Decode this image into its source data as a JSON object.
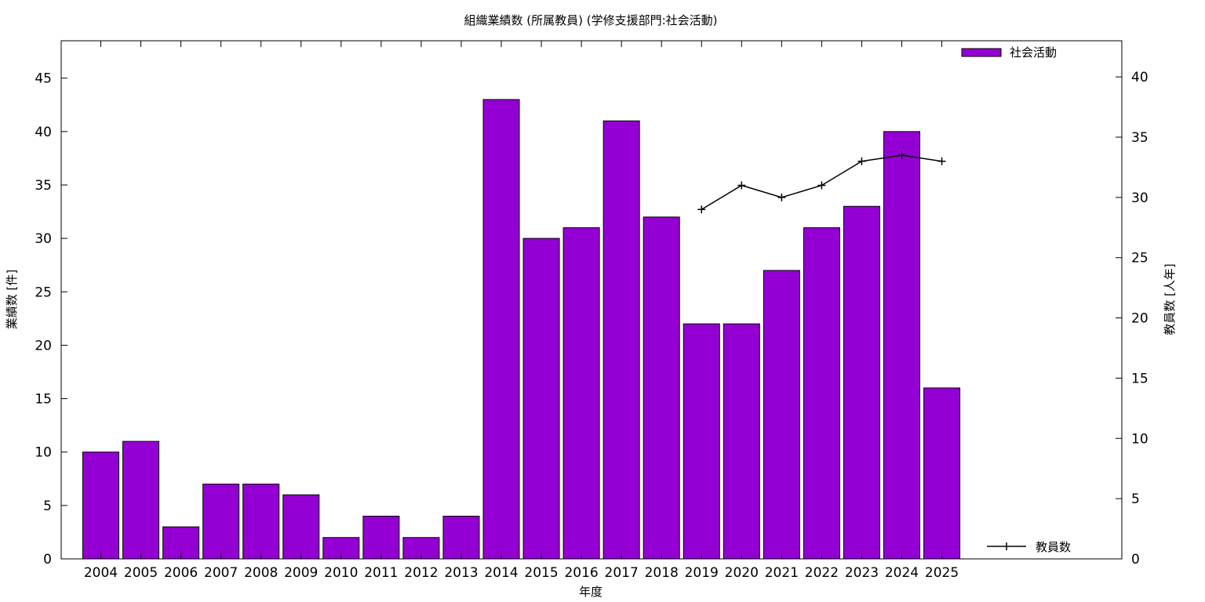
{
  "chart_data": {
    "type": "bar",
    "title": "組織業績数 (所属教員) (学修支援部門:社会活動)",
    "xlabel": "年度",
    "ylabel": "業績数 [件]",
    "y2label": "教員数 [人年]",
    "ylim": [
      0,
      48.5
    ],
    "y2lim": [
      0,
      43
    ],
    "yticks": [
      0,
      5,
      10,
      15,
      20,
      25,
      30,
      35,
      40,
      45
    ],
    "y2ticks": [
      0,
      5,
      10,
      15,
      20,
      25,
      30,
      35,
      40
    ],
    "grid": false,
    "categories": [
      "2004",
      "2005",
      "2006",
      "2007",
      "2008",
      "2009",
      "2010",
      "2011",
      "2012",
      "2013",
      "2014",
      "2015",
      "2016",
      "2017",
      "2018",
      "2019",
      "2020",
      "2021",
      "2022",
      "2023",
      "2024",
      "2025"
    ],
    "series": [
      {
        "name": "社会活動",
        "type": "bar",
        "axis": "left",
        "color": "#9400d3",
        "legend_position": "top-right",
        "values": [
          10,
          11,
          3,
          7,
          7,
          6,
          2,
          4,
          2,
          4,
          43,
          30,
          31,
          41,
          32,
          22,
          22,
          27,
          31,
          33,
          40,
          16
        ]
      },
      {
        "name": "教員数",
        "type": "line",
        "axis": "right",
        "color": "#000000",
        "legend_position": "bottom-right",
        "x": [
          "2019",
          "2020",
          "2021",
          "2022",
          "2023",
          "2024",
          "2025"
        ],
        "values": [
          29,
          31,
          30,
          31,
          33,
          33.5,
          33
        ]
      }
    ]
  }
}
